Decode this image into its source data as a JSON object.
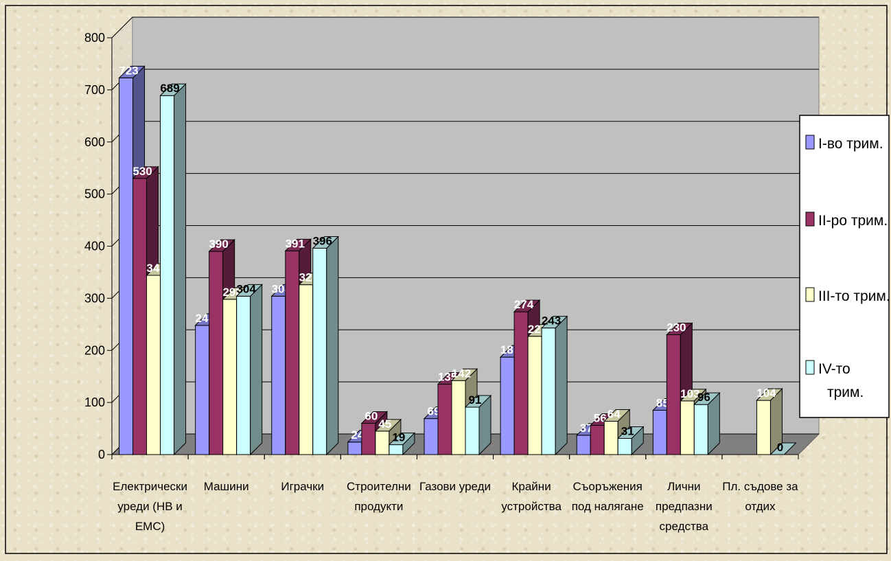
{
  "chart_data": {
    "type": "bar",
    "title": "",
    "xlabel": "",
    "ylabel": "",
    "ylim": [
      0,
      800
    ],
    "yticks": [
      "0",
      "100",
      "200",
      "300",
      "400",
      "500",
      "600",
      "700",
      "800"
    ],
    "grid": true,
    "legend_position": "right",
    "categories": [
      [
        "Електрически",
        "уреди (НВ и",
        "ЕМС)"
      ],
      [
        "Машини"
      ],
      [
        "Играчки"
      ],
      [
        "Строителни",
        "продукти"
      ],
      [
        "Газови уреди"
      ],
      [
        "Крайни",
        "устройства"
      ],
      [
        "Съоръжения",
        "под налягане"
      ],
      [
        "Лични",
        "предпазни",
        "средства"
      ],
      [
        "Пл. съдове за",
        "отдих"
      ]
    ],
    "series": [
      {
        "name": "I-во трим.",
        "color": "#9999ff",
        "values": [
          723,
          248,
          304,
          24,
          69,
          187,
          37,
          85,
          null
        ]
      },
      {
        "name": "II-ро трим.",
        "color": "#993366",
        "values": [
          530,
          390,
          391,
          60,
          135,
          274,
          56,
          230,
          null
        ]
      },
      {
        "name": "III-то трим.",
        "color": "#ffffcc",
        "values": [
          344,
          298,
          326,
          45,
          142,
          227,
          64,
          103,
          104
        ]
      },
      {
        "name": "IV-то трим.",
        "color": "#ccffff",
        "values": [
          689,
          304,
          396,
          19,
          91,
          243,
          31,
          96,
          0
        ]
      }
    ],
    "legend_lines": [
      [
        "I-во трим."
      ],
      [
        "II-ро трим."
      ],
      [
        "III-то трим."
      ],
      [
        "IV-то",
        "трим."
      ]
    ]
  }
}
